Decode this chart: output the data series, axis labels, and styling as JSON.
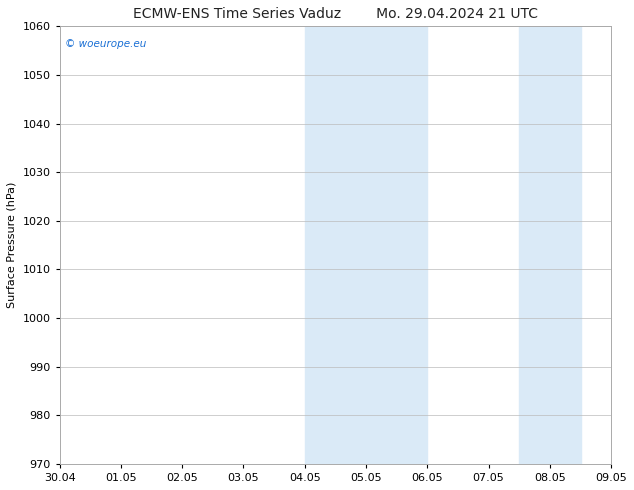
{
  "title_left": "ECMW-ENS Time Series Vaduz",
  "title_right": "Mo. 29.04.2024 21 UTC",
  "ylabel": "Surface Pressure (hPa)",
  "ylim": [
    970,
    1060
  ],
  "yticks": [
    970,
    980,
    990,
    1000,
    1010,
    1020,
    1030,
    1040,
    1050,
    1060
  ],
  "xlim_start": 0,
  "xlim_end": 9,
  "xtick_labels": [
    "30.04",
    "01.05",
    "02.05",
    "03.05",
    "04.05",
    "05.05",
    "06.05",
    "07.05",
    "08.05",
    "09.05"
  ],
  "shaded_bands": [
    {
      "x_start": 4.0,
      "x_end": 6.0
    },
    {
      "x_start": 7.5,
      "x_end": 8.5
    }
  ],
  "shade_color": "#daeaf7",
  "bg_color": "#ffffff",
  "grid_color": "#bbbbbb",
  "watermark_text": "© woeurope.eu",
  "watermark_color": "#1a6fd4",
  "title_color": "#222222",
  "title_fontsize": 10,
  "ylabel_fontsize": 8,
  "tick_fontsize": 8
}
